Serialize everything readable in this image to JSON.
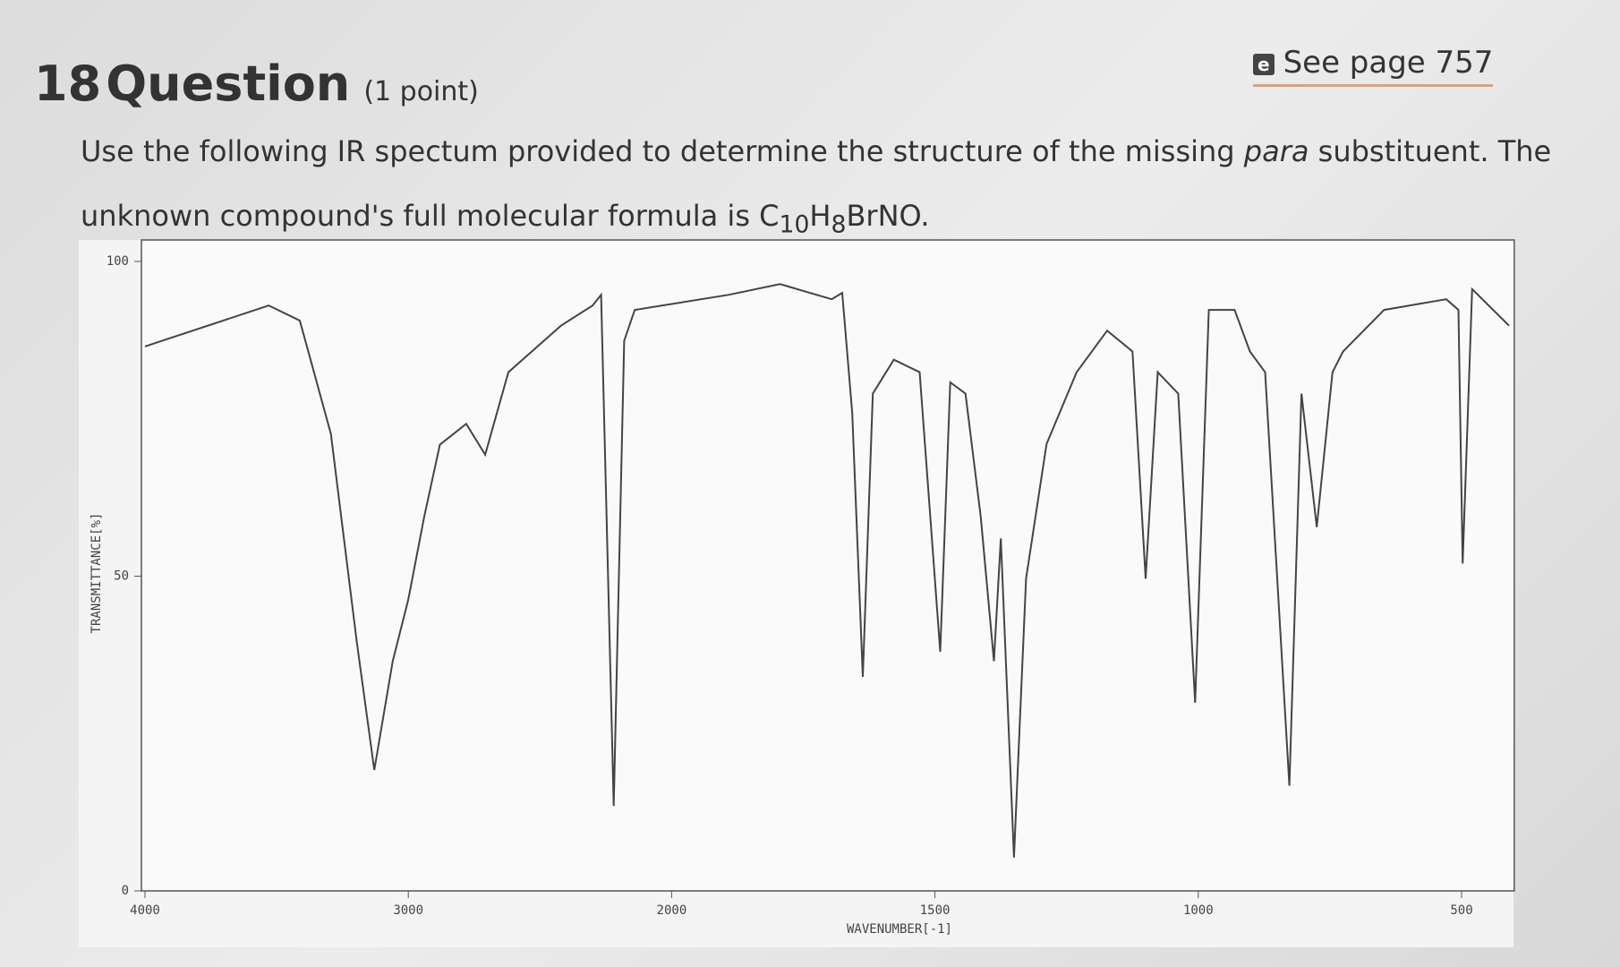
{
  "question": {
    "number": "18",
    "title": "Question",
    "points": "(1 point)",
    "link_icon": "e",
    "link": "See page 757",
    "line1": {
      "before": "Use the following IR spectum provided to determine the structure of the missing ",
      "italic": "para",
      "after": " substituent. The"
    },
    "line2": {
      "text": "unknown compound's full molecular formula is C",
      "sub1": "10",
      "mid": "H",
      "sub2": "8",
      "end": "BrNO."
    }
  },
  "chart_data": {
    "type": "line",
    "x_label": "WAVENUMBER[-1]",
    "y_label": "TRANSMITTANCE[%]",
    "color": "#444444",
    "x": [
      4000,
      3530,
      3412,
      3294,
      3196,
      3129,
      3059,
      3000,
      2940,
      2880,
      2780,
      2708,
      2620,
      2420,
      2300,
      2268,
      2220,
      2180,
      2140,
      1892,
      1794,
      1696,
      1676,
      1657,
      1637,
      1618,
      1578,
      1529,
      1490,
      1471,
      1442,
      1413,
      1388,
      1375,
      1350,
      1327,
      1288,
      1231,
      1173,
      1125,
      1100,
      1077,
      1038,
      1006,
      980,
      931,
      902,
      873,
      827,
      804,
      775,
      745,
      725,
      647,
      529,
      506,
      498,
      480,
      410
    ],
    "values": [
      86.5,
      93,
      90.6,
      72.6,
      39.7,
      19.2,
      36.5,
      46.3,
      59.4,
      70.9,
      74.2,
      69.3,
      82.4,
      89.8,
      93,
      94.7,
      13.5,
      87.4,
      92.3,
      94.7,
      96.4,
      94,
      95,
      75.9,
      34,
      79,
      84.4,
      82.4,
      38,
      80.8,
      79,
      59.4,
      36.5,
      56,
      5.3,
      49.6,
      71,
      82.4,
      89,
      85.7,
      49.6,
      82.4,
      79,
      29.9,
      92.3,
      92.3,
      85.7,
      82.4,
      16.7,
      79,
      57.8,
      82.4,
      85.7,
      92.3,
      94,
      92.3,
      52,
      95.6,
      89.8
    ],
    "xlim": [
      4000,
      400
    ],
    "xticks": [
      4000,
      3000,
      2000,
      1500,
      1000,
      500
    ],
    "ylim": [
      0,
      100
    ],
    "yticks": [
      0,
      50,
      100
    ]
  }
}
